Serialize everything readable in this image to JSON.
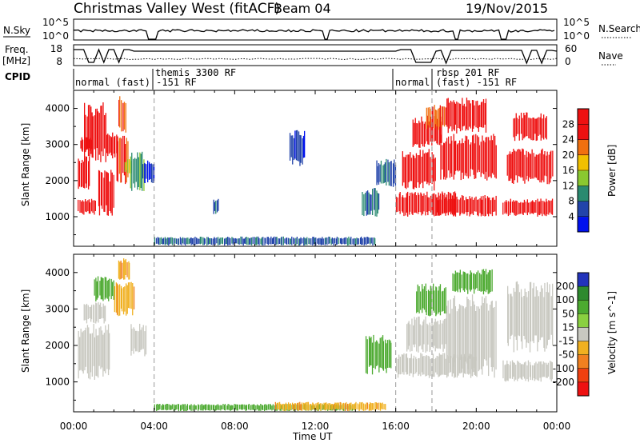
{
  "header": {
    "radar": "Christmas Valley West (fitACF)",
    "beam": "Beam 04",
    "date": "19/Nov/2015"
  },
  "time_axis": {
    "ticks": [
      "00:00",
      "04:00",
      "08:00",
      "12:00",
      "16:00",
      "20:00",
      "00:00"
    ],
    "label": "Time UT"
  },
  "strip_nsky": {
    "left_label": "N.Sky",
    "right_label": "N.Search",
    "left_ticks": [
      "10^5",
      "10^0"
    ],
    "right_ticks": [
      "10^5",
      "10^0"
    ]
  },
  "strip_freq": {
    "left_label_1": "Freq.",
    "left_label_2": "[MHz]",
    "right_label": "Nave",
    "left_ticks": [
      "18",
      "8"
    ],
    "right_ticks": [
      "60",
      "0"
    ]
  },
  "cpid": {
    "label": "CPID",
    "names": [
      "themis 3300 RF",
      "rbsp 201 RF"
    ],
    "mode_labels": [
      "normal (fast) -151 RF",
      "normal",
      "(fast) -151 RF"
    ]
  },
  "colors": {
    "red": "#ee1111",
    "orange": "#f07010",
    "yellow": "#f0b000",
    "lgreen": "#8ac830",
    "dgreen": "#2e8a2e",
    "blue": "#2244cc",
    "grey": "#c8c8c0",
    "teal": "#2a8a70",
    "slate": "#3a5a90"
  },
  "chart_data": [
    {
      "type": "heatmap",
      "name": "Power",
      "xlabel": "",
      "ylabel": "Slant Range [km]",
      "x_unit": "hours UT",
      "xlim": [
        0,
        24
      ],
      "ylim": [
        180,
        4500
      ],
      "y_ticks": [
        1000,
        2000,
        3000,
        4000
      ],
      "colorbar": {
        "label": "Power [dB]",
        "ticks": [
          4,
          8,
          12,
          16,
          20,
          24,
          28
        ],
        "range": [
          0,
          30
        ],
        "colors": [
          "#0011ee",
          "#2244aa",
          "#2a8a70",
          "#8ac830",
          "#f0c000",
          "#f07010",
          "#ee1111",
          "#ee1111"
        ]
      },
      "regions": [
        {
          "t": [
            0.2,
            1.1
          ],
          "r": [
            1050,
            1500
          ],
          "v": 30
        },
        {
          "t": [
            0.2,
            0.8
          ],
          "r": [
            1700,
            2700
          ],
          "v": 30
        },
        {
          "t": [
            0.3,
            0.9
          ],
          "r": [
            2800,
            3200
          ],
          "v": 30
        },
        {
          "t": [
            0.5,
            1.6
          ],
          "r": [
            2500,
            4200
          ],
          "v": 30
        },
        {
          "t": [
            1.2,
            2.0
          ],
          "r": [
            1000,
            2300
          ],
          "v": 30
        },
        {
          "t": [
            1.6,
            2.2
          ],
          "r": [
            2600,
            3400
          ],
          "v": 30
        },
        {
          "t": [
            2.1,
            2.7
          ],
          "r": [
            1900,
            3300
          ],
          "v": 28
        },
        {
          "t": [
            2.2,
            2.6
          ],
          "r": [
            3300,
            4400
          ],
          "v": 26
        },
        {
          "t": [
            2.5,
            2.9
          ],
          "r": [
            2200,
            2600
          ],
          "v": 18
        },
        {
          "t": [
            2.8,
            3.5
          ],
          "r": [
            1700,
            2800
          ],
          "v": 14
        },
        {
          "t": [
            3.4,
            4.0
          ],
          "r": [
            1900,
            2600
          ],
          "v": 8
        },
        {
          "t": [
            4.0,
            15.0
          ],
          "r": [
            200,
            450
          ],
          "v": 10
        },
        {
          "t": [
            6.9,
            7.2
          ],
          "r": [
            1050,
            1500
          ],
          "v": 10
        },
        {
          "t": [
            10.7,
            11.5
          ],
          "r": [
            2400,
            3400
          ],
          "v": 8
        },
        {
          "t": [
            14.3,
            15.2
          ],
          "r": [
            1000,
            1800
          ],
          "v": 12
        },
        {
          "t": [
            15.0,
            16.0
          ],
          "r": [
            1800,
            2600
          ],
          "v": 10
        },
        {
          "t": [
            16.0,
            19.0
          ],
          "r": [
            1000,
            1700
          ],
          "v": 30
        },
        {
          "t": [
            16.3,
            18.0
          ],
          "r": [
            1700,
            2900
          ],
          "v": 30
        },
        {
          "t": [
            16.8,
            18.3
          ],
          "r": [
            2900,
            3800
          ],
          "v": 30
        },
        {
          "t": [
            17.5,
            18.5
          ],
          "r": [
            3400,
            4100
          ],
          "v": 26
        },
        {
          "t": [
            18.0,
            21.0
          ],
          "r": [
            1000,
            1600
          ],
          "v": 30
        },
        {
          "t": [
            18.2,
            21.0
          ],
          "r": [
            2000,
            3300
          ],
          "v": 30
        },
        {
          "t": [
            18.5,
            20.5
          ],
          "r": [
            3300,
            4300
          ],
          "v": 30
        },
        {
          "t": [
            21.3,
            23.8
          ],
          "r": [
            1000,
            1500
          ],
          "v": 30
        },
        {
          "t": [
            21.5,
            23.8
          ],
          "r": [
            1900,
            2900
          ],
          "v": 30
        },
        {
          "t": [
            21.8,
            23.5
          ],
          "r": [
            3100,
            3900
          ],
          "v": 30
        }
      ]
    },
    {
      "type": "heatmap",
      "name": "Velocity",
      "xlabel": "Time UT",
      "ylabel": "Slant Range [km]",
      "x_unit": "hours UT",
      "xlim": [
        0,
        24
      ],
      "ylim": [
        180,
        4500
      ],
      "y_ticks": [
        1000,
        2000,
        3000,
        4000
      ],
      "colorbar": {
        "label": "Velocity [m s^-1]",
        "ticks": [
          200,
          100,
          50,
          15,
          -15,
          -50,
          -100,
          -200
        ],
        "colors": [
          "#2233bb",
          "#2e8a2e",
          "#4caa30",
          "#8ad040",
          "#c8c8c0",
          "#f0b020",
          "#f08020",
          "#f04010",
          "#ee1111"
        ]
      },
      "regions": [
        {
          "t": [
            0.2,
            1.8
          ],
          "r": [
            1050,
            2600
          ],
          "v": 0
        },
        {
          "t": [
            0.5,
            1.6
          ],
          "r": [
            2600,
            3200
          ],
          "v": 0
        },
        {
          "t": [
            1.0,
            2.0
          ],
          "r": [
            3200,
            3900
          ],
          "v": 60
        },
        {
          "t": [
            2.0,
            3.0
          ],
          "r": [
            2800,
            3800
          ],
          "v": -40
        },
        {
          "t": [
            2.2,
            2.8
          ],
          "r": [
            3800,
            4400
          ],
          "v": -40
        },
        {
          "t": [
            2.8,
            3.6
          ],
          "r": [
            1700,
            2600
          ],
          "v": 0
        },
        {
          "t": [
            4.0,
            14.0
          ],
          "r": [
            200,
            400
          ],
          "v": 60
        },
        {
          "t": [
            10.0,
            15.5
          ],
          "r": [
            200,
            450
          ],
          "v": -40
        },
        {
          "t": [
            14.5,
            15.8
          ],
          "r": [
            1200,
            2300
          ],
          "v": 60
        },
        {
          "t": [
            16.0,
            20.0
          ],
          "r": [
            1100,
            1800
          ],
          "v": 0
        },
        {
          "t": [
            16.5,
            18.5
          ],
          "r": [
            1800,
            2800
          ],
          "v": 0
        },
        {
          "t": [
            17.0,
            18.5
          ],
          "r": [
            2800,
            3700
          ],
          "v": 60
        },
        {
          "t": [
            18.5,
            21.0
          ],
          "r": [
            1100,
            3400
          ],
          "v": 0
        },
        {
          "t": [
            18.8,
            20.8
          ],
          "r": [
            3400,
            4100
          ],
          "v": 60
        },
        {
          "t": [
            21.3,
            23.8
          ],
          "r": [
            1000,
            1600
          ],
          "v": 0
        },
        {
          "t": [
            21.5,
            23.8
          ],
          "r": [
            1800,
            3800
          ],
          "v": 0
        }
      ]
    }
  ]
}
